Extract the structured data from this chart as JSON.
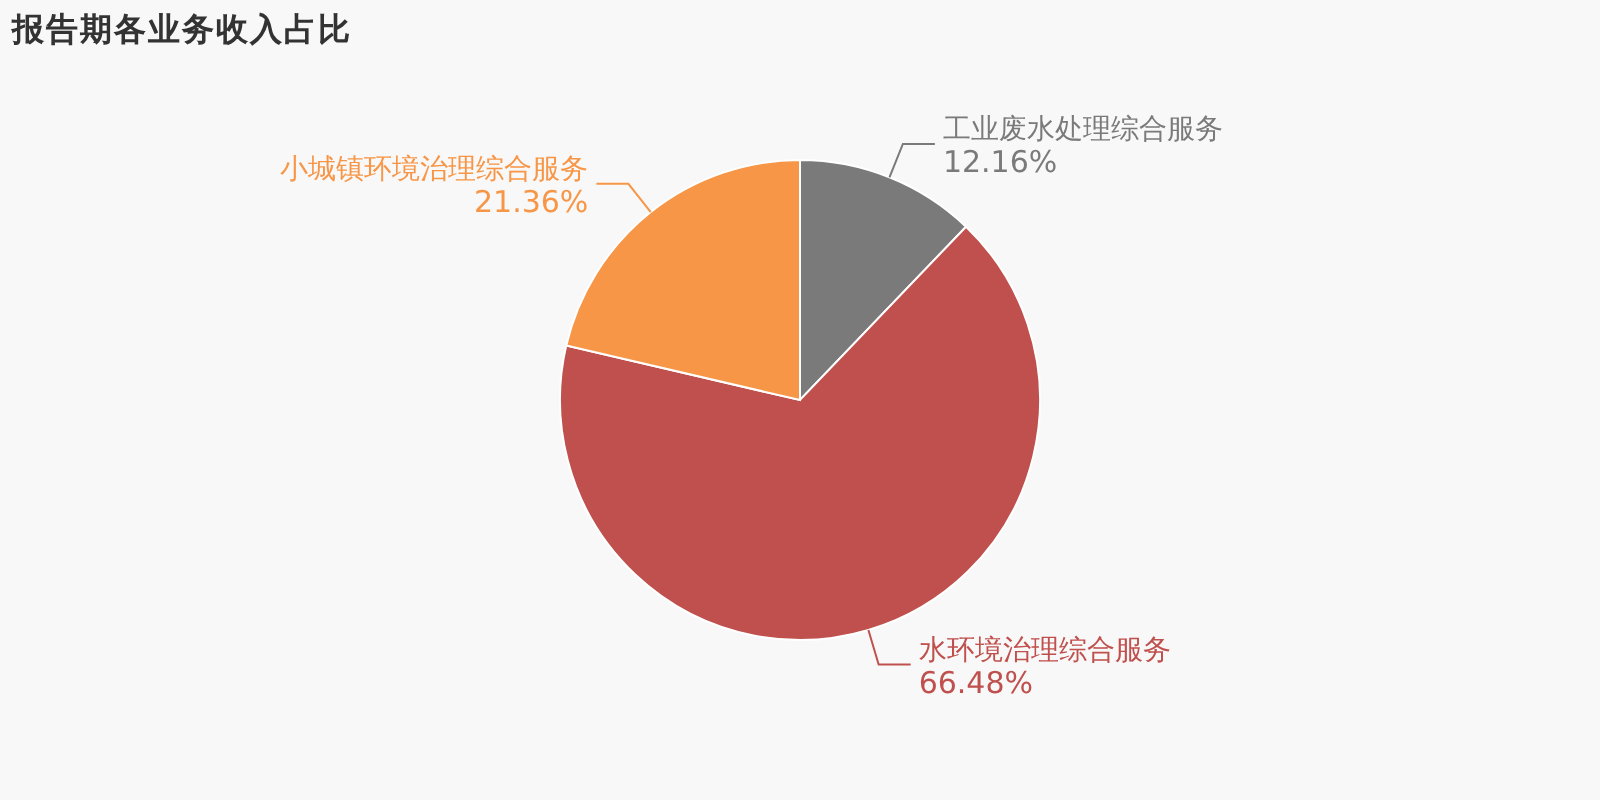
{
  "chart_data": {
    "type": "pie",
    "title": "报告期各业务收入占比",
    "categories": [
      "工业废水处理综合服务",
      "水环境治理综合服务",
      "小城镇环境治理综合服务"
    ],
    "values": [
      12.16,
      66.48,
      21.36
    ],
    "colors": [
      "#7a7a7a",
      "#c0504d",
      "#f79646"
    ],
    "value_labels": [
      "12.16%",
      "66.48%",
      "21.36%"
    ]
  }
}
